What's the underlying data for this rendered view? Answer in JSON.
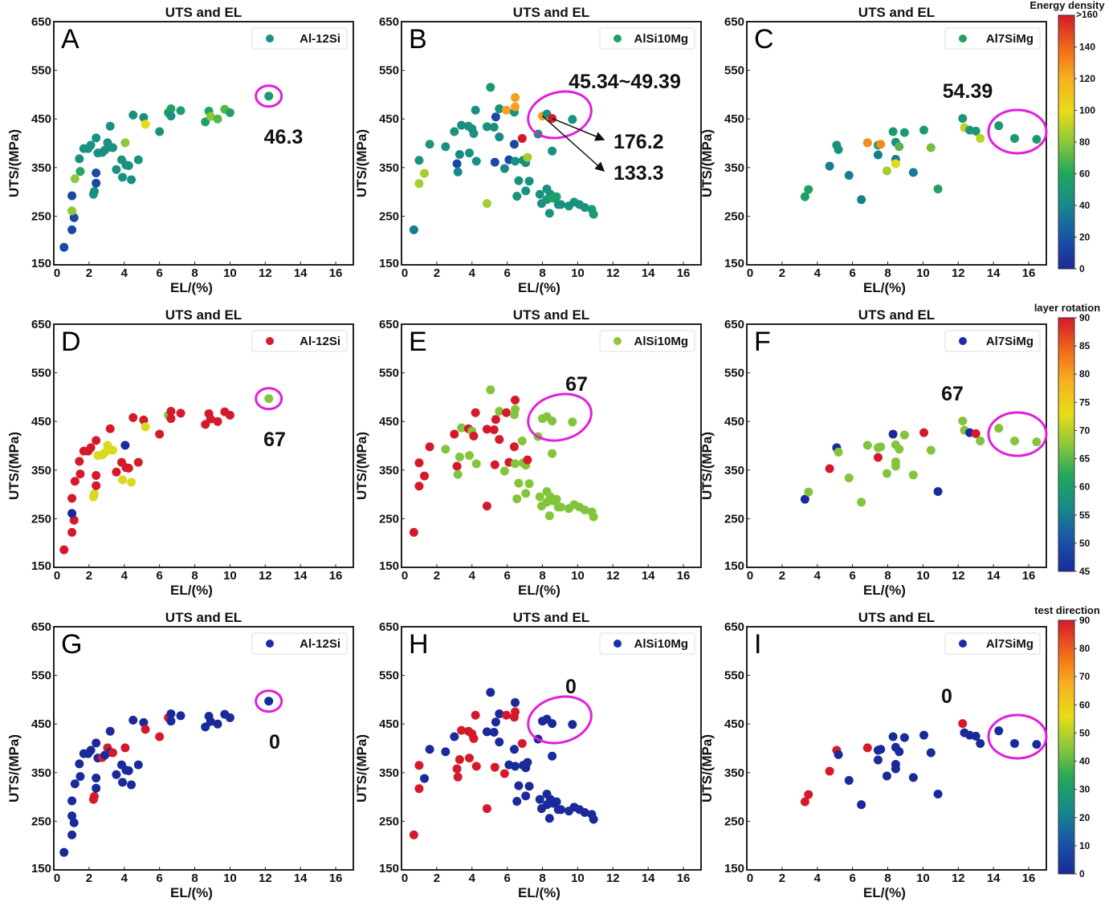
{
  "chart_data": {
    "type": "scatter",
    "xlabel": "EL/(%)",
    "ylabel": "UTS/(MPa)",
    "xlim": [
      0,
      17
    ],
    "ylim": [
      150,
      650
    ],
    "xticks": [
      0,
      2,
      4,
      6,
      8,
      10,
      12,
      14,
      16
    ],
    "yticks": [
      150,
      250,
      350,
      450,
      550,
      650
    ],
    "grid": false,
    "colormap": "jet",
    "point_fields": [
      "EL",
      "UTS",
      "energy_density",
      "layer_rotation",
      "test_direction"
    ],
    "datasets": {
      "Al-12Si": [
        [
          0.58,
          186,
          15,
          90,
          0
        ],
        [
          1.03,
          222,
          15,
          90,
          0
        ],
        [
          1.15,
          247,
          15,
          90,
          0
        ],
        [
          1.03,
          261,
          80,
          45,
          0
        ],
        [
          1.03,
          292,
          15,
          90,
          0
        ],
        [
          1.2,
          327,
          80,
          90,
          0
        ],
        [
          1.5,
          342,
          60,
          90,
          0
        ],
        [
          1.45,
          368,
          45,
          90,
          0
        ],
        [
          1.7,
          389,
          45,
          90,
          0
        ],
        [
          1.95,
          389,
          45,
          90,
          0
        ],
        [
          2.1,
          396,
          45,
          90,
          0
        ],
        [
          2.4,
          411,
          45,
          90,
          0
        ],
        [
          2.5,
          380,
          45,
          72,
          0
        ],
        [
          2.75,
          381,
          45,
          72,
          90
        ],
        [
          2.9,
          386,
          45,
          72,
          0
        ],
        [
          3.05,
          401,
          45,
          72,
          90
        ],
        [
          3.2,
          392,
          45,
          72,
          0
        ],
        [
          3.35,
          391,
          45,
          72,
          90
        ],
        [
          3.2,
          435,
          45,
          90,
          0
        ],
        [
          2.25,
          295,
          45,
          72,
          90
        ],
        [
          2.3,
          301,
          45,
          72,
          90
        ],
        [
          2.4,
          318,
          15,
          90,
          0
        ],
        [
          2.4,
          339,
          15,
          90,
          0
        ],
        [
          3.55,
          346,
          45,
          90,
          0
        ],
        [
          3.85,
          366,
          45,
          90,
          0
        ],
        [
          4.05,
          401,
          80,
          45,
          90
        ],
        [
          4.1,
          355,
          45,
          90,
          0
        ],
        [
          4.25,
          354,
          45,
          90,
          0
        ],
        [
          3.9,
          330,
          45,
          72,
          0
        ],
        [
          4.4,
          325,
          45,
          72,
          0
        ],
        [
          4.8,
          366,
          45,
          90,
          0
        ],
        [
          4.5,
          458,
          45,
          90,
          0
        ],
        [
          5.1,
          453,
          45,
          90,
          0
        ],
        [
          5.2,
          439,
          100,
          72,
          90
        ],
        [
          6.0,
          424,
          45,
          90,
          90
        ],
        [
          6.5,
          463,
          55,
          67,
          90
        ],
        [
          6.65,
          471,
          55,
          90,
          0
        ],
        [
          6.65,
          456,
          45,
          90,
          0
        ],
        [
          7.2,
          467,
          55,
          90,
          0
        ],
        [
          8.6,
          444,
          55,
          90,
          0
        ],
        [
          8.8,
          466,
          55,
          90,
          0
        ],
        [
          8.9,
          455,
          80,
          90,
          0
        ],
        [
          9.3,
          450,
          70,
          90,
          0
        ],
        [
          9.7,
          470,
          70,
          90,
          0
        ],
        [
          10.0,
          463,
          55,
          90,
          0
        ],
        [
          12.2,
          497,
          50,
          67,
          0
        ]
      ],
      "AlSi10Mg": [
        [
          0.7,
          222,
          35,
          90,
          90
        ],
        [
          1.0,
          365,
          45,
          90,
          90
        ],
        [
          1.0,
          317,
          85,
          90,
          90
        ],
        [
          1.3,
          338,
          85,
          90,
          0
        ],
        [
          1.6,
          398,
          50,
          90,
          0
        ],
        [
          2.5,
          393,
          45,
          67,
          0
        ],
        [
          3.0,
          424,
          45,
          90,
          0
        ],
        [
          3.4,
          437,
          45,
          67,
          90
        ],
        [
          3.8,
          435,
          45,
          90,
          90
        ],
        [
          4.0,
          430,
          45,
          67,
          90
        ],
        [
          4.1,
          420,
          45,
          90,
          90
        ],
        [
          4.2,
          468,
          45,
          90,
          90
        ],
        [
          3.15,
          358,
          15,
          90,
          90
        ],
        [
          3.2,
          341,
          40,
          67,
          90
        ],
        [
          3.3,
          377,
          40,
          67,
          90
        ],
        [
          3.85,
          380,
          45,
          67,
          90
        ],
        [
          4.25,
          363,
          45,
          67,
          90
        ],
        [
          4.85,
          276,
          85,
          90,
          90
        ],
        [
          4.85,
          434,
          45,
          90,
          0
        ],
        [
          5.05,
          515,
          50,
          67,
          0
        ],
        [
          5.25,
          433,
          45,
          90,
          0
        ],
        [
          5.35,
          454,
          15,
          90,
          0
        ],
        [
          5.3,
          361,
          15,
          90,
          90
        ],
        [
          5.55,
          413,
          40,
          90,
          0
        ],
        [
          5.55,
          471,
          45,
          67,
          0
        ],
        [
          5.85,
          348,
          40,
          67,
          90
        ],
        [
          5.95,
          468,
          125,
          90,
          90
        ],
        [
          6.1,
          366,
          15,
          90,
          0
        ],
        [
          6.4,
          464,
          45,
          67,
          90
        ],
        [
          6.45,
          475,
          125,
          67,
          90
        ],
        [
          6.45,
          494,
          125,
          90,
          0
        ],
        [
          6.4,
          398,
          15,
          90,
          0
        ],
        [
          6.45,
          363,
          45,
          67,
          0
        ],
        [
          6.65,
          323,
          45,
          67,
          0
        ],
        [
          6.55,
          291,
          45,
          67,
          0
        ],
        [
          6.85,
          410,
          160,
          67,
          90
        ],
        [
          6.9,
          365,
          45,
          67,
          0
        ],
        [
          7.05,
          360,
          45,
          67,
          0
        ],
        [
          7.15,
          371,
          85,
          90,
          0
        ],
        [
          7.05,
          302,
          45,
          67,
          0
        ],
        [
          7.25,
          322,
          45,
          67,
          0
        ],
        [
          7.75,
          419,
          45,
          67,
          0
        ],
        [
          7.85,
          295,
          45,
          67,
          0
        ],
        [
          7.95,
          276,
          45,
          67,
          0
        ],
        [
          8.0,
          456,
          125,
          67,
          0
        ],
        [
          8.25,
          460,
          45,
          67,
          0
        ],
        [
          8.55,
          451,
          160,
          67,
          0
        ],
        [
          8.25,
          306,
          45,
          67,
          0
        ],
        [
          8.45,
          295,
          45,
          67,
          0
        ],
        [
          8.55,
          384,
          45,
          67,
          0
        ],
        [
          8.25,
          284,
          50,
          67,
          0
        ],
        [
          8.6,
          287,
          55,
          67,
          0
        ],
        [
          8.8,
          290,
          55,
          67,
          0
        ],
        [
          8.4,
          256,
          45,
          67,
          0
        ],
        [
          8.9,
          274,
          45,
          67,
          0
        ],
        [
          9.05,
          274,
          45,
          67,
          0
        ],
        [
          9.5,
          271,
          45,
          67,
          0
        ],
        [
          9.7,
          449,
          45,
          67,
          0
        ],
        [
          9.8,
          279,
          45,
          67,
          0
        ],
        [
          10.1,
          274,
          45,
          67,
          0
        ],
        [
          10.4,
          268,
          45,
          67,
          0
        ],
        [
          10.8,
          264,
          50,
          67,
          0
        ],
        [
          10.9,
          254,
          50,
          67,
          0
        ]
      ],
      "Al7SiMg": [
        [
          3.3,
          290,
          55,
          45,
          90
        ],
        [
          3.5,
          305,
          55,
          67,
          90
        ],
        [
          4.7,
          353,
          35,
          90,
          90
        ],
        [
          5.1,
          396,
          45,
          45,
          90
        ],
        [
          5.2,
          387,
          45,
          67,
          0
        ],
        [
          5.8,
          334,
          35,
          67,
          0
        ],
        [
          6.5,
          284,
          35,
          67,
          0
        ],
        [
          6.85,
          401,
          130,
          67,
          90
        ],
        [
          7.45,
          396,
          55,
          67,
          0
        ],
        [
          7.6,
          398,
          130,
          67,
          0
        ],
        [
          7.45,
          376,
          35,
          90,
          0
        ],
        [
          7.95,
          343,
          85,
          67,
          0
        ],
        [
          8.3,
          424,
          50,
          45,
          0
        ],
        [
          8.45,
          402,
          45,
          67,
          0
        ],
        [
          8.45,
          367,
          35,
          67,
          0
        ],
        [
          8.45,
          358,
          98,
          67,
          0
        ],
        [
          8.65,
          393,
          70,
          67,
          0
        ],
        [
          8.95,
          422,
          50,
          67,
          0
        ],
        [
          9.45,
          340,
          35,
          67,
          0
        ],
        [
          10.05,
          427,
          50,
          90,
          0
        ],
        [
          10.45,
          391,
          75,
          67,
          0
        ],
        [
          10.85,
          306,
          55,
          45,
          0
        ],
        [
          12.25,
          451,
          50,
          67,
          90
        ],
        [
          12.35,
          432,
          90,
          67,
          0
        ],
        [
          12.65,
          427,
          50,
          45,
          0
        ],
        [
          13.0,
          425,
          50,
          90,
          0
        ],
        [
          13.25,
          410,
          90,
          67,
          0
        ],
        [
          14.3,
          436,
          50,
          67,
          0
        ],
        [
          15.2,
          410,
          50,
          67,
          0
        ],
        [
          16.45,
          408,
          50,
          67,
          0
        ]
      ]
    },
    "color_variables": {
      "energy_density": {
        "title": "Energy density",
        "range": [
          0,
          160
        ],
        "ticks": [
          "0",
          "20",
          "40",
          "60",
          "80",
          "100",
          "120",
          "140"
        ],
        "top_label": ">160"
      },
      "layer_rotation": {
        "title": "layer rotation",
        "range": [
          45,
          90
        ],
        "ticks": [
          "45",
          "50",
          "55",
          "60",
          "65",
          "70",
          "75",
          "80",
          "85",
          "90"
        ]
      },
      "test_direction": {
        "title": "test direction",
        "range": [
          0,
          90
        ],
        "ticks": [
          "0",
          "10",
          "20",
          "30",
          "40",
          "50",
          "60",
          "70",
          "80",
          "90"
        ]
      }
    },
    "panels": [
      {
        "letter": "A",
        "title": "UTS and EL",
        "material": "Al-12Si",
        "color_by": "energy_density",
        "legend": "top-right",
        "legend_color": "#1a8f86",
        "annotations": [
          "46.3"
        ]
      },
      {
        "letter": "B",
        "title": "UTS and EL",
        "material": "AlSi10Mg",
        "color_by": "energy_density",
        "legend": "top-right",
        "legend_color": "#22a062",
        "annotations": [
          "45.34~49.39",
          "176.2",
          "133.3"
        ]
      },
      {
        "letter": "C",
        "title": "UTS and EL",
        "material": "Al7SiMg",
        "color_by": "energy_density",
        "legend": "top-right",
        "legend_color": "#22a062",
        "annotations": [
          "54.39"
        ]
      },
      {
        "letter": "D",
        "title": "UTS and EL",
        "material": "Al-12Si",
        "color_by": "layer_rotation",
        "legend": "top-right",
        "legend_color": "#d21f2c",
        "annotations": [
          "67"
        ]
      },
      {
        "letter": "E",
        "title": "UTS and EL",
        "material": "AlSi10Mg",
        "color_by": "layer_rotation",
        "legend": "top-right",
        "legend_color": "#8cc83a",
        "annotations": [
          "67"
        ]
      },
      {
        "letter": "F",
        "title": "UTS and EL",
        "material": "Al7SiMg",
        "color_by": "layer_rotation",
        "legend": "top-right",
        "legend_color": "#1a2fa8",
        "annotations": [
          "67"
        ]
      },
      {
        "letter": "G",
        "title": "UTS and EL",
        "material": "Al-12Si",
        "color_by": "test_direction",
        "legend": "top-right",
        "legend_color": "#1a2fa8",
        "annotations": [
          "0"
        ]
      },
      {
        "letter": "H",
        "title": "UTS and EL",
        "material": "AlSi10Mg",
        "color_by": "test_direction",
        "legend": "top-right",
        "legend_color": "#1a2fa8",
        "annotations": [
          "0"
        ]
      },
      {
        "letter": "I",
        "title": "UTS and EL",
        "material": "Al7SiMg",
        "color_by": "test_direction",
        "legend": "top-right",
        "legend_color": "#1a2fa8",
        "annotations": [
          "0"
        ]
      }
    ],
    "highlight_color": "#e020d8"
  }
}
